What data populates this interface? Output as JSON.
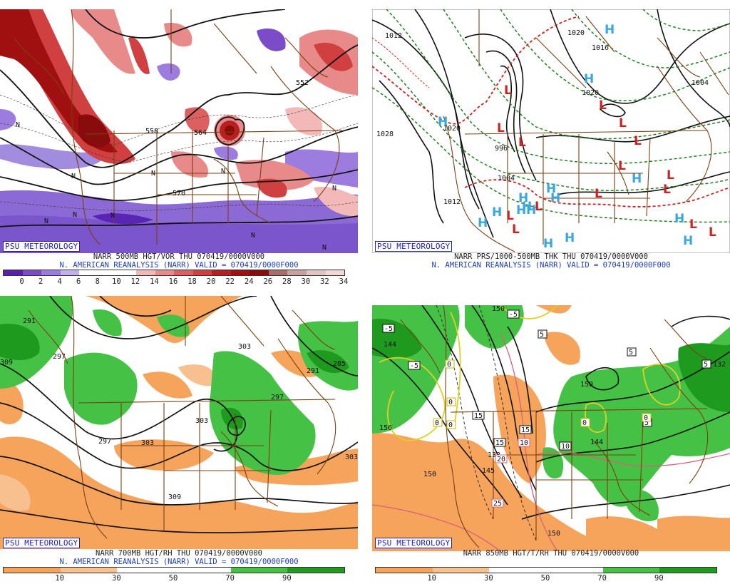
{
  "panels": {
    "p1": {
      "badge": "PSU METEOROLOGY",
      "title_line1": "NARR 500MB HGT/VOR THU 070419/0000V000",
      "title_line2": "N. AMERICAN REANALYSIS (NARR) VALID = 070419/0000F000",
      "colorbar_ticks": [
        "0",
        "2",
        "4",
        "6",
        "8",
        "10",
        "12",
        "14",
        "16",
        "18",
        "20",
        "22",
        "24",
        "26",
        "28",
        "30",
        "32",
        "34"
      ],
      "colorbar_colors": [
        "#5a1fa8",
        "#7a4cc8",
        "#9d7ce0",
        "#c2b0ee",
        "#ffffff",
        "#ffffff",
        "#ffffff",
        "#f3b8b8",
        "#e88a8a",
        "#dc6060",
        "#d04040",
        "#b82020",
        "#a01010",
        "#880c0c",
        "#a86e6e",
        "#c9a0a0",
        "#e0c3c3",
        "#f2d8d8"
      ],
      "contour_labels": [
        "552",
        "558",
        "564",
        "570",
        "552",
        "564"
      ],
      "n_labels": [
        "N",
        "N",
        "N",
        "N",
        "N",
        "N",
        "N",
        "N",
        "N",
        "N"
      ]
    },
    "p2": {
      "badge": "PSU METEOROLOGY",
      "title_line1": "NARR PRS/1000-500MB THK THU 070419/0000V000",
      "title_line2": "N. AMERICAN REANALYSIS (NARR) VALID = 070419/0000F000",
      "contour_labels": [
        "1012",
        "1020",
        "1028",
        "1020",
        "1012",
        "1004",
        "1004",
        "1020",
        "1008",
        "1016",
        "1004",
        "996"
      ],
      "h_markers": 16,
      "l_markers": 15,
      "symbol_h": "H",
      "symbol_l": "L"
    },
    "p3": {
      "badge": "PSU METEOROLOGY",
      "title_line1": "NARR 700MB HGT/RH THU 070419/0000V000",
      "title_line2": "N. AMERICAN REANALYSIS (NARR) VALID = 070419/0000F000",
      "colorbar_ticks": [
        "10",
        "30",
        "50",
        "70",
        "90"
      ],
      "colorbar_colors": [
        "#f6a35c",
        "#f8c08e",
        "#ffffff",
        "#ffffff",
        "#45c245",
        "#1e9a1e"
      ],
      "contour_labels": [
        "291",
        "297",
        "303",
        "309",
        "297",
        "303",
        "309",
        "291",
        "285",
        "297",
        "303",
        "309",
        "303"
      ]
    },
    "p4": {
      "badge": "PSU METEOROLOGY",
      "title_line1": "NARR 850MB HGT/T/RH THU 070419/0000V000",
      "colorbar_ticks": [
        "10",
        "30",
        "50",
        "70",
        "90"
      ],
      "colorbar_colors": [
        "#f6a35c",
        "#f8c08e",
        "#ffffff",
        "#ffffff",
        "#45c245",
        "#1e9a1e"
      ],
      "contour_labels": [
        "150",
        "144",
        "156",
        "150",
        "144",
        "138",
        "145",
        "150",
        "150",
        "144",
        "132"
      ],
      "temp_labels": [
        "-5",
        "-5",
        "-5",
        "5",
        "5",
        "0",
        "0",
        "0",
        "0",
        "5",
        "15",
        "15",
        "15",
        "10",
        "20",
        "10",
        "25",
        "0",
        "0",
        "5"
      ]
    }
  }
}
